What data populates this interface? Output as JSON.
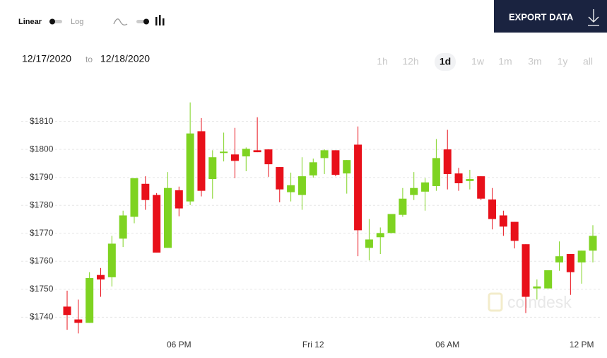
{
  "controls": {
    "scale_linear": "Linear",
    "scale_log": "Log",
    "export": "EXPORT DATA",
    "date_from": "12/17/2020",
    "date_sep": "to",
    "date_to": "12/18/2020",
    "ranges": [
      "1h",
      "12h",
      "1d",
      "1w",
      "1m",
      "3m",
      "1y",
      "all"
    ],
    "active_range": 2,
    "watermark": "coindesk"
  },
  "chart_data": {
    "type": "candlestick",
    "categories": [
      null,
      null,
      null,
      null,
      null,
      null,
      null,
      null,
      null,
      null,
      "06 PM",
      null,
      null,
      null,
      null,
      null,
      null,
      null,
      null,
      null,
      null,
      null,
      "Fri 12",
      null,
      null,
      null,
      null,
      null,
      null,
      null,
      null,
      null,
      null,
      null,
      "06 AM",
      null,
      null,
      null,
      null,
      null,
      null,
      null,
      null,
      null,
      null,
      null,
      "12 PM",
      null
    ],
    "open": [
      1743.8,
      1739.2,
      1738.0,
      1755.1,
      1754.3,
      1768.1,
      1775.9,
      1787.7,
      1783.7,
      1764.8,
      1785.4,
      1781.4,
      1806.5,
      1789.4,
      1798.7,
      1798.2,
      1797.5,
      1799.7,
      1800.0,
      1793.7,
      1784.7,
      1783.7,
      1790.7,
      1796.9,
      1799.7,
      1791.4,
      1801.7,
      1764.8,
      1768.6,
      1770.1,
      1776.6,
      1783.7,
      1784.9,
      1786.9,
      1800.0,
      1791.4,
      1788.7,
      1790.4,
      1782.1,
      1776.4,
      1774.1,
      1766.1,
      1750.3,
      1750.3,
      1759.6,
      1762.6,
      1759.6,
      1763.8
    ],
    "high": [
      1749.5,
      1746.3,
      1756.1,
      1757.6,
      1769.1,
      1778.1,
      1789.7,
      1790.4,
      1784.4,
      1791.9,
      1786.7,
      1816.8,
      1811.2,
      1799.7,
      1806.0,
      1807.7,
      1800.7,
      1811.5,
      1800.0,
      1793.7,
      1791.7,
      1797.2,
      1796.7,
      1800.0,
      1799.7,
      1796.2,
      1808.2,
      1775.1,
      1772.1,
      1776.9,
      1786.2,
      1791.9,
      1789.7,
      1803.7,
      1807.0,
      1793.4,
      1792.7,
      1790.4,
      1786.2,
      1778.1,
      1774.1,
      1766.1,
      1753.5,
      1756.8,
      1767.1,
      1762.6,
      1763.8,
      1772.9
    ],
    "low": [
      1735.5,
      1734.2,
      1738.0,
      1747.3,
      1751.0,
      1765.1,
      1773.6,
      1778.4,
      1763.1,
      1764.8,
      1776.1,
      1780.1,
      1783.2,
      1782.4,
      1795.7,
      1789.7,
      1792.2,
      1799.0,
      1790.2,
      1781.1,
      1781.4,
      1778.4,
      1789.9,
      1791.2,
      1790.4,
      1784.2,
      1761.8,
      1760.3,
      1762.6,
      1770.1,
      1775.9,
      1781.9,
      1778.1,
      1785.2,
      1785.7,
      1785.2,
      1785.7,
      1781.9,
      1771.4,
      1769.1,
      1764.6,
      1741.5,
      1746.3,
      1750.3,
      1756.6,
      1748.0,
      1752.0,
      1759.6
    ],
    "close": [
      1740.8,
      1738.0,
      1754.0,
      1753.5,
      1766.3,
      1776.4,
      1789.7,
      1781.9,
      1763.1,
      1786.2,
      1778.9,
      1805.7,
      1785.2,
      1797.2,
      1799.2,
      1795.9,
      1800.2,
      1799.0,
      1794.7,
      1785.7,
      1787.2,
      1790.4,
      1795.4,
      1799.7,
      1790.9,
      1796.2,
      1771.1,
      1767.8,
      1770.1,
      1776.9,
      1782.4,
      1786.2,
      1788.2,
      1796.9,
      1791.2,
      1787.9,
      1789.4,
      1782.4,
      1775.1,
      1772.4,
      1767.3,
      1747.3,
      1751.0,
      1756.8,
      1761.8,
      1756.1,
      1763.8,
      1769.1
    ],
    "up_color": "#7ed321",
    "down_color": "#e8101a",
    "ylim": [
      1732,
      1818
    ],
    "yticks": [
      {
        "value": 1740,
        "label": "$1740"
      },
      {
        "value": 1750,
        "label": "$1750"
      },
      {
        "value": 1760,
        "label": "$1760"
      },
      {
        "value": 1770,
        "label": "$1770"
      },
      {
        "value": 1780,
        "label": "$1780"
      },
      {
        "value": 1790,
        "label": "$1790"
      },
      {
        "value": 1800,
        "label": "$1800"
      },
      {
        "value": 1810,
        "label": "$1810"
      }
    ],
    "grid": true
  }
}
